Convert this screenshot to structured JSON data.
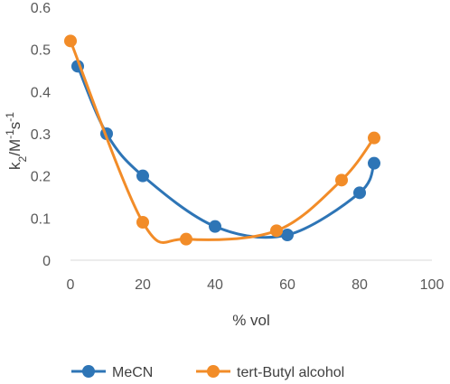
{
  "chart_data": {
    "type": "scatter",
    "xlabel": "% vol",
    "ylabel": {
      "base": "k",
      "sub": "2",
      "mid": "/M",
      "sup1": "-1",
      "s": "s",
      "sup2": "-1"
    },
    "xlim": [
      0,
      100
    ],
    "ylim": [
      0,
      0.6
    ],
    "x_ticks": [
      0,
      20,
      40,
      60,
      80,
      100
    ],
    "y_ticks": [
      0,
      0.1,
      0.2,
      0.3,
      0.4,
      0.5,
      0.6
    ],
    "x_tick_labels": [
      "0",
      "20",
      "40",
      "60",
      "80",
      "100"
    ],
    "y_tick_labels": [
      "0",
      "0.1",
      "0.2",
      "0.3",
      "0.4",
      "0.5",
      "0.6"
    ],
    "grid": false,
    "legend_position": "bottom",
    "smooth_lines": true,
    "series": [
      {
        "name": "MeCN",
        "color": "#2E75B6",
        "points": [
          [
            2,
            0.46
          ],
          [
            10,
            0.3
          ],
          [
            20,
            0.2
          ],
          [
            40,
            0.08
          ],
          [
            60,
            0.06
          ],
          [
            80,
            0.16
          ],
          [
            84,
            0.23
          ]
        ]
      },
      {
        "name": "tert-Butyl alcohol",
        "color": "#F28C28",
        "points": [
          [
            0,
            0.52
          ],
          [
            20,
            0.09
          ],
          [
            32,
            0.05
          ],
          [
            57,
            0.07
          ],
          [
            75,
            0.19
          ],
          [
            84,
            0.29
          ]
        ]
      }
    ]
  }
}
